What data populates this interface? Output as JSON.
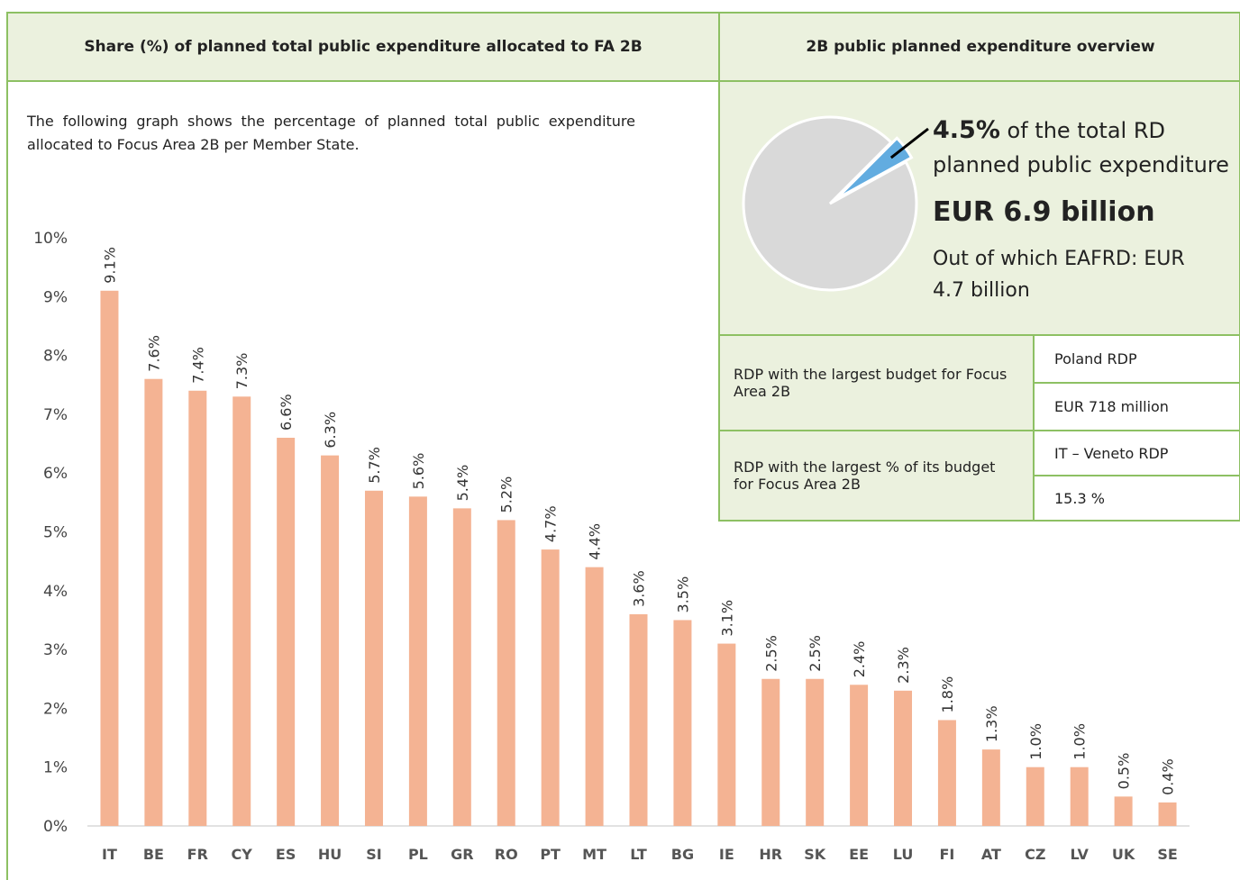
{
  "header": {
    "left_title": "Share (%) of planned total public expenditure allocated to FA 2B",
    "right_title": "2B public planned expenditure overview"
  },
  "description": "The following graph shows the percentage of planned total public expenditure allocated to Focus Area 2B per Member State.",
  "chart_data": [
    {
      "type": "bar",
      "categories": [
        "IT",
        "BE",
        "FR",
        "CY",
        "ES",
        "HU",
        "SI",
        "PL",
        "GR",
        "RO",
        "PT",
        "MT",
        "LT",
        "BG",
        "IE",
        "HR",
        "SK",
        "EE",
        "LU",
        "FI",
        "AT",
        "CZ",
        "LV",
        "UK",
        "SE"
      ],
      "values": [
        9.1,
        7.6,
        7.4,
        7.3,
        6.6,
        6.3,
        5.7,
        5.6,
        5.4,
        5.2,
        4.7,
        4.4,
        3.6,
        3.5,
        3.1,
        2.5,
        2.5,
        2.4,
        2.3,
        1.8,
        1.3,
        1.0,
        1.0,
        0.5,
        0.4
      ],
      "value_labels": [
        "9.1%",
        "7.6%",
        "7.4%",
        "7.3%",
        "6.6%",
        "6.3%",
        "5.7%",
        "5.6%",
        "5.4%",
        "5.2%",
        "4.7%",
        "4.4%",
        "3.6%",
        "3.5%",
        "3.1%",
        "2.5%",
        "2.5%",
        "2.4%",
        "2.3%",
        "1.8%",
        "1.3%",
        "1.0%",
        "1.0%",
        "0.5%",
        "0.4%"
      ],
      "color": "#f4b393",
      "ylim": [
        0,
        10
      ],
      "yticks": [
        {
          "value": 0,
          "label": "0%"
        },
        {
          "value": 1,
          "label": "1%"
        },
        {
          "value": 2,
          "label": "2%"
        },
        {
          "value": 3,
          "label": "3%"
        },
        {
          "value": 4,
          "label": "4%"
        },
        {
          "value": 5,
          "label": "5%"
        },
        {
          "value": 6,
          "label": "6%"
        },
        {
          "value": 7,
          "label": "7%"
        },
        {
          "value": 8,
          "label": "8%"
        },
        {
          "value": 9,
          "label": "9%"
        },
        {
          "value": 10,
          "label": "10%"
        }
      ]
    },
    {
      "type": "pie",
      "values": [
        4.5,
        95.5
      ],
      "value_labels": [
        "4.5%",
        null
      ],
      "colors": [
        "#62ace0",
        "#d9d9d9"
      ]
    }
  ],
  "overview": {
    "share_text": "of the total RD planned public expenditure",
    "total": "EUR 6.9 billion",
    "eafrd": "Out of which EAFRD: EUR 4.7 billion"
  },
  "table": {
    "rows": [
      [
        "RDP with the largest budget for Focus Area 2B",
        "Poland RDP",
        "EUR 718 million"
      ],
      [
        "RDP with the largest % of its budget for Focus Area 2B",
        "IT – Veneto RDP",
        "15.3 %"
      ]
    ]
  }
}
